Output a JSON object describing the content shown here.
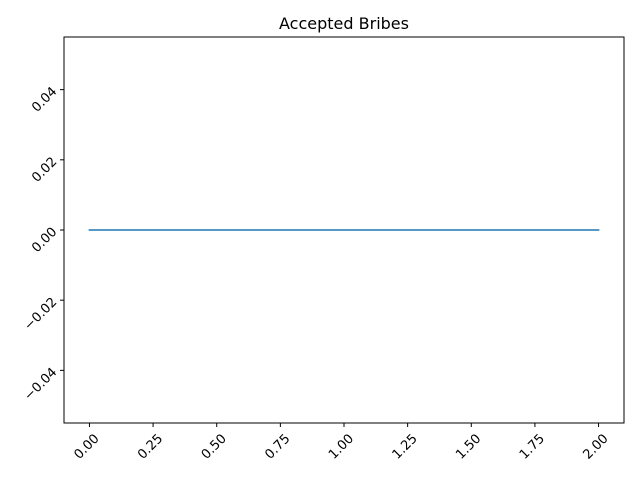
{
  "chart_data": {
    "type": "line",
    "title": "Accepted Bribes",
    "xlabel": "",
    "ylabel": "",
    "x": [
      0,
      1,
      2
    ],
    "series": [
      {
        "values": [
          0,
          0,
          0
        ],
        "color": "#1f77b4"
      }
    ],
    "xlim": [
      -0.1,
      2.1
    ],
    "ylim": [
      -0.055,
      0.055
    ],
    "x_ticks": [
      0,
      0.25,
      0.5,
      0.75,
      1,
      1.25,
      1.5,
      1.75,
      2
    ],
    "x_tick_labels": [
      "0.00",
      "0.25",
      "0.50",
      "0.75",
      "1.00",
      "1.25",
      "1.50",
      "1.75",
      "2.00"
    ],
    "y_ticks": [
      -0.04,
      -0.02,
      0,
      0.02,
      0.04
    ],
    "y_tick_labels": [
      "−0.04",
      "−0.02",
      "0.00",
      "0.02",
      "0.04"
    ],
    "tick_label_rotation": 45,
    "grid": false,
    "legend": "none"
  }
}
